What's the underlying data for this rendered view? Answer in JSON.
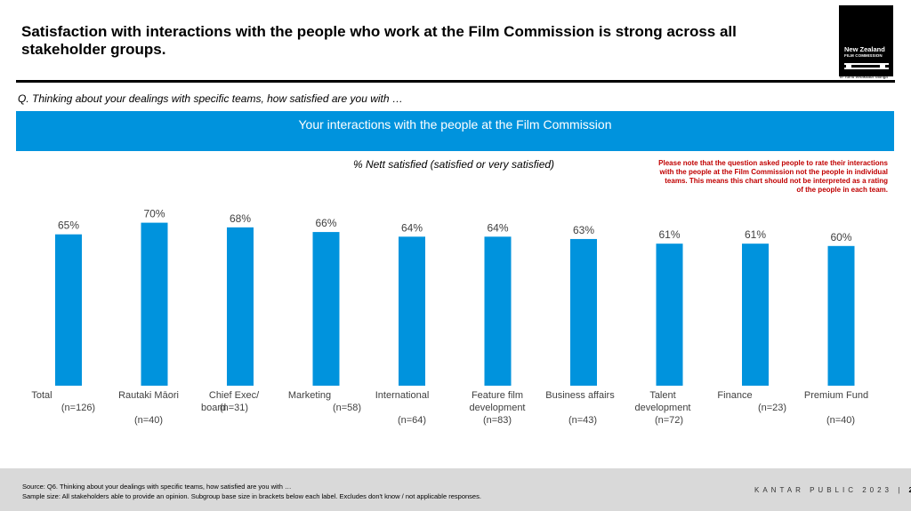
{
  "header": {
    "title": "Satisfaction with interactions with the people who work at the Film Commission is strong across all stakeholder groups.",
    "question": "Q. Thinking about your dealings with specific teams, how satisfied are you with …"
  },
  "logo": {
    "name": "New Zealand",
    "sub": "FILM COMMISSION",
    "tagline": "Te Tumu Whakaata Taonga"
  },
  "banner": "Your interactions with the people at the Film Commission",
  "subtitle": "% Nett satisfied (satisfied or very satisfied)",
  "note": "Please note that the question asked people to rate their interactions with the people at the Film Commission not the people in individual teams. This means this chart should not be interpreted as a rating of the people in each team.",
  "chart_data": {
    "type": "bar",
    "title": "",
    "categories": [
      [
        "Total",
        "(n=126)"
      ],
      [
        "Rautaki Māori",
        "(n=40)"
      ],
      [
        "Chief Exec/",
        "board",
        "(n=31)"
      ],
      [
        "Marketing",
        "(n=58)"
      ],
      [
        "International",
        "(n=64)"
      ],
      [
        "Feature film",
        "development",
        "(n=83)"
      ],
      [
        "Business affairs",
        "(n=43)"
      ],
      [
        "Talent",
        "development",
        "(n=72)"
      ],
      [
        "Finance",
        "(n=23)"
      ],
      [
        "Premium Fund",
        "(n=40)"
      ]
    ],
    "values": [
      65,
      70,
      68,
      66,
      64,
      64,
      63,
      61,
      61,
      60
    ],
    "value_labels": [
      "65%",
      "70%",
      "68%",
      "66%",
      "64%",
      "64%",
      "63%",
      "61%",
      "61%",
      "60%"
    ],
    "ylim": [
      0,
      100
    ],
    "grid": false,
    "bar_color": "#0093dd"
  },
  "footer": {
    "source": "Source: Q6. Thinking about your dealings with specific teams, how satisfied are you with …",
    "sample": "Sample size: All stakeholders able to provide an opinion. Subgroup base size in brackets below each label. Excludes don't know / not applicable responses.",
    "brand": "KANTAR PUBLIC 2023",
    "separator": "|",
    "page": "2"
  }
}
